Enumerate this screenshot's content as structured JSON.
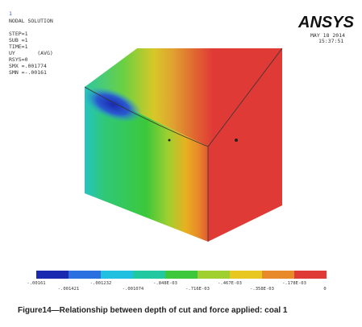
{
  "header": {
    "index": "1",
    "title": "NODAL SOLUTION",
    "params": [
      "STEP=1",
      "SUB =1",
      "TIME=1",
      "UY       (AVG)",
      "RSYS=0",
      "SMX =.001774",
      "SMN =-.00161"
    ]
  },
  "brand": {
    "logo": "ANSYS",
    "date": "MAY 18 2014",
    "time": "15:37:51"
  },
  "legend": {
    "top_labels": [
      "-.00161",
      "-.001232",
      "-.848E-03",
      "-.467E-03",
      "-.178E-03"
    ],
    "bottom_labels": [
      "-.001421",
      "-.001074",
      "-.716E-03",
      "-.358E-03",
      "0"
    ]
  },
  "caption": "Figure14—Relationship between depth of cut and force applied: coal 1"
}
